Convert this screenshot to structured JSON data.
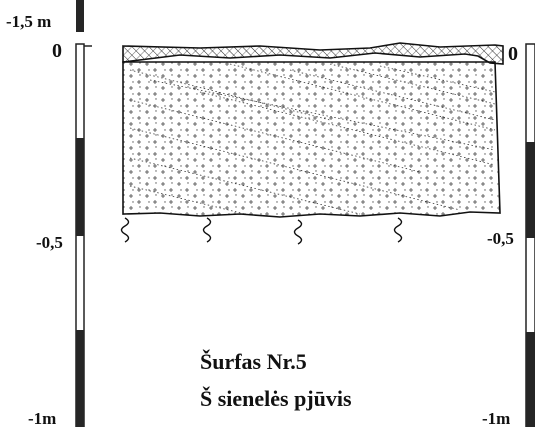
{
  "labels": {
    "top_left_depth": "-1,5 m",
    "left_zero": "0",
    "left_half": "-0,5",
    "left_bottom": "-1m",
    "right_zero": "0",
    "right_half": "-0,5",
    "right_bottom": "-1m"
  },
  "title": {
    "line1": "Šurfas Nr.5",
    "line2": "Š sienelės pjūvis"
  },
  "colors": {
    "ink": "#111111",
    "scale_dark": "#262626",
    "paper": "#ffffff"
  }
}
